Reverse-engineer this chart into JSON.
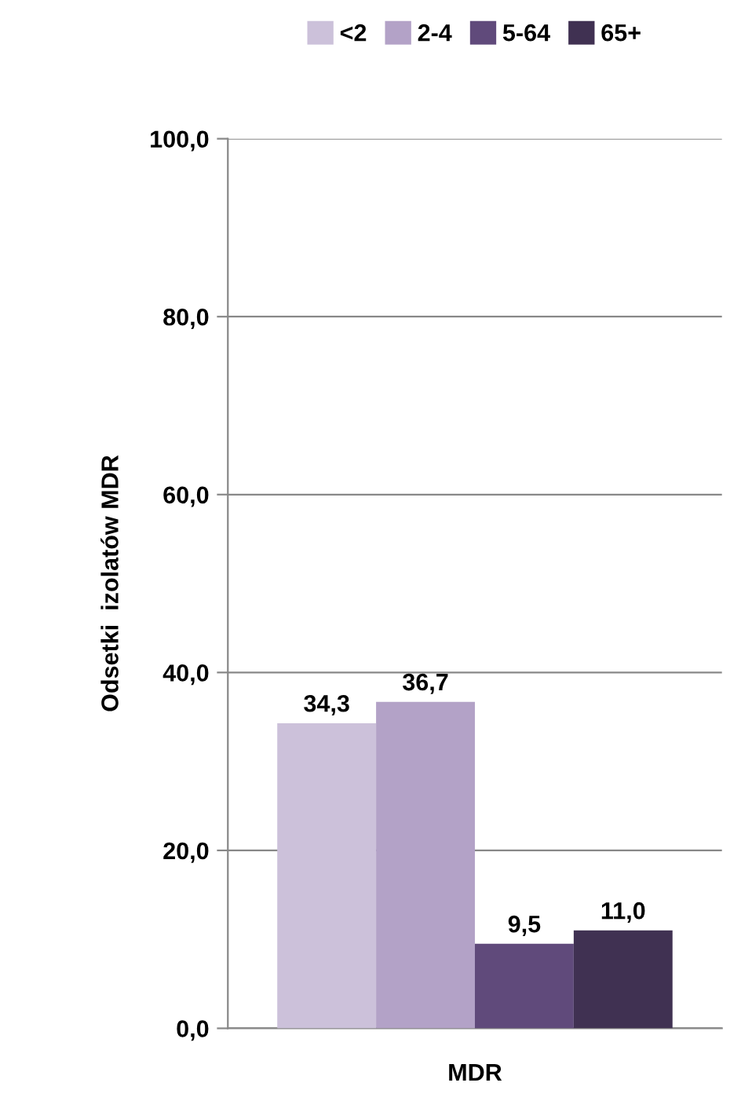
{
  "chart_data": {
    "type": "bar",
    "categories": [
      "MDR"
    ],
    "ylabel": "Odsetki  izolatów MDR",
    "series": [
      {
        "name": "<2",
        "color": "#ccc1da",
        "values": [
          34.3
        ],
        "value_labels": [
          "34,3"
        ]
      },
      {
        "name": "2-4",
        "color": "#b3a2c7",
        "values": [
          36.7
        ],
        "value_labels": [
          "36,7"
        ]
      },
      {
        "name": "5-64",
        "color": "#604a7b",
        "values": [
          9.5
        ],
        "value_labels": [
          "9,5"
        ]
      },
      {
        "name": "65+",
        "color": "#403152",
        "values": [
          11.0
        ],
        "value_labels": [
          "11,0"
        ]
      }
    ],
    "ylim": [
      0,
      100
    ],
    "yticks": [
      {
        "value": 0,
        "label": "0,0"
      },
      {
        "value": 20,
        "label": "20,0"
      },
      {
        "value": 40,
        "label": "40,0"
      },
      {
        "value": 60,
        "label": "60,0"
      },
      {
        "value": 80,
        "label": "80,0"
      },
      {
        "value": 100,
        "label": "100,0"
      }
    ],
    "grid": "y",
    "legend": "top"
  }
}
